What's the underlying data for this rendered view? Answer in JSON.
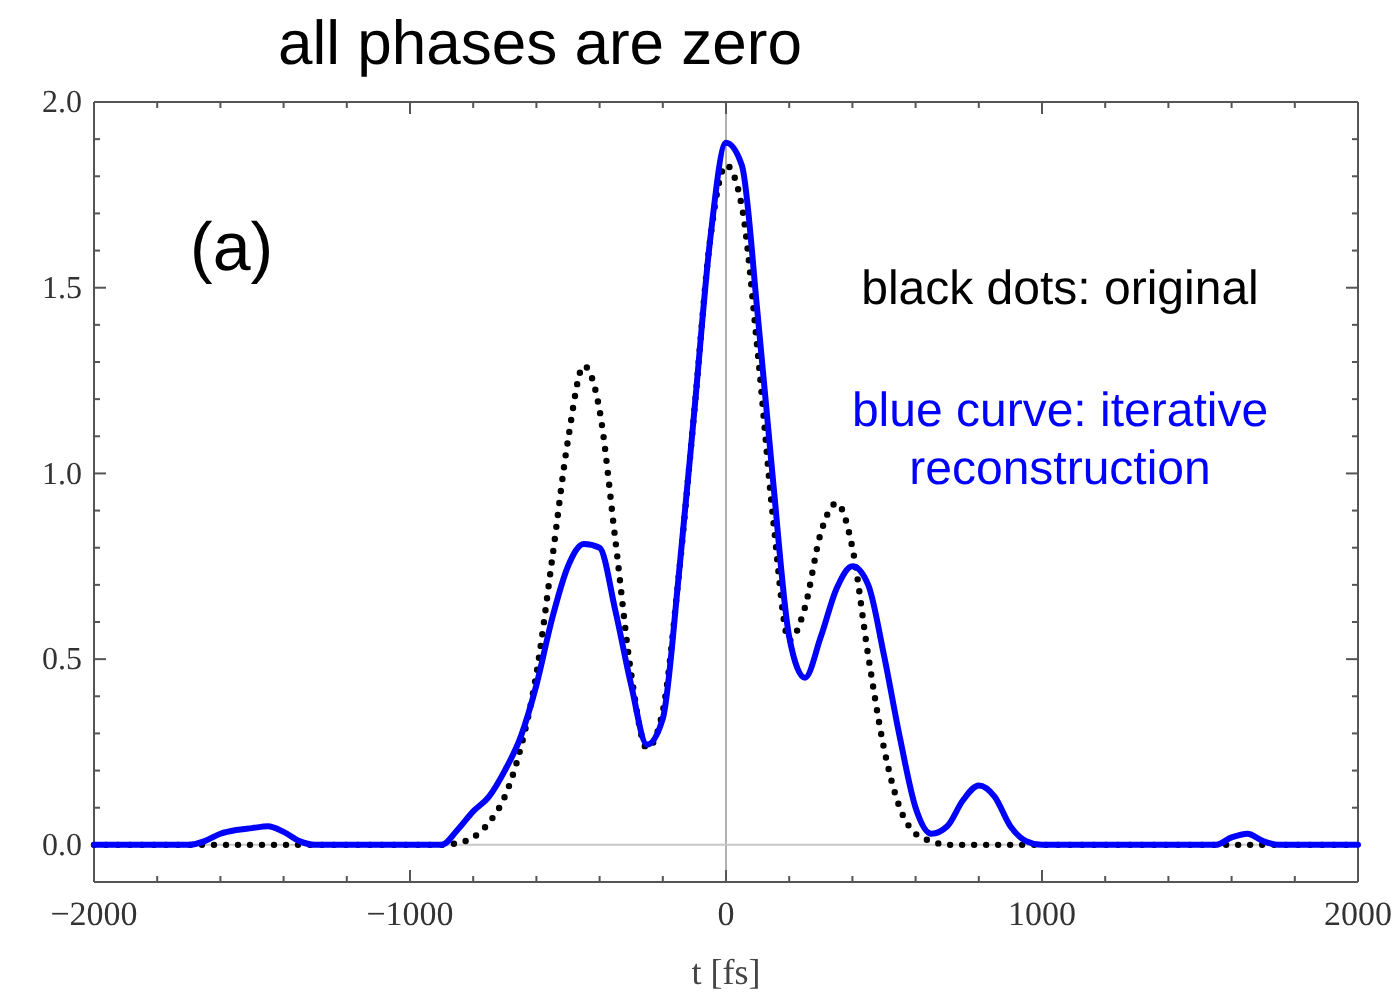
{
  "chart_data": {
    "type": "line",
    "title": "all phases are zero",
    "xlabel": "t [fs]",
    "annotations": [
      "(a)",
      "black dots: original",
      "blue curve: iterative reconstruction"
    ],
    "xlim": [
      -2000,
      2000
    ],
    "ylim": [
      -0.1,
      2.0
    ],
    "xticks": [
      -2000,
      {
        "value": -1800,
        "label": null
      },
      {
        "value": -1600,
        "label": null
      },
      {
        "value": -1400,
        "label": null
      },
      {
        "value": -1200,
        "label": null
      },
      -1000,
      {
        "value": -800,
        "label": null
      },
      {
        "value": -600,
        "label": null
      },
      {
        "value": -400,
        "label": null
      },
      {
        "value": -200,
        "label": null
      },
      0,
      {
        "value": 200,
        "label": null
      },
      {
        "value": 400,
        "label": null
      },
      {
        "value": 600,
        "label": null
      },
      {
        "value": 800,
        "label": null
      },
      1000,
      {
        "value": 1200,
        "label": null
      },
      {
        "value": 1400,
        "label": null
      },
      {
        "value": 1600,
        "label": null
      },
      {
        "value": 1800,
        "label": null
      },
      2000
    ],
    "yticks": [
      {
        "value": 0,
        "label": "0.0"
      },
      {
        "value": 0.1,
        "label": null
      },
      {
        "value": 0.2,
        "label": null
      },
      {
        "value": 0.3,
        "label": null
      },
      {
        "value": 0.4,
        "label": null
      },
      {
        "value": 0.5,
        "label": "0.5"
      },
      {
        "value": 0.6,
        "label": null
      },
      {
        "value": 0.7,
        "label": null
      },
      {
        "value": 0.8,
        "label": null
      },
      {
        "value": 0.9,
        "label": null
      },
      {
        "value": 1,
        "label": "1.0"
      },
      {
        "value": 1.1,
        "label": null
      },
      {
        "value": 1.2,
        "label": null
      },
      {
        "value": 1.3,
        "label": null
      },
      {
        "value": 1.4,
        "label": null
      },
      {
        "value": 1.5,
        "label": "1.5"
      },
      {
        "value": 1.6,
        "label": null
      },
      {
        "value": 1.7,
        "label": null
      },
      {
        "value": 1.8,
        "label": null
      },
      {
        "value": 1.9,
        "label": null
      },
      {
        "value": 2,
        "label": "2.0"
      }
    ],
    "ref_lines": [
      {
        "axis": "x",
        "value": 0,
        "color": "#b0b0b0"
      },
      {
        "axis": "y",
        "value": 0,
        "color": "#c8c8c8"
      }
    ],
    "series": [
      {
        "color": "#000000",
        "line_style": "dotted",
        "x": [
          -2000,
          -1000,
          -900,
          -850,
          -800,
          -750,
          -700,
          -650,
          -600,
          -550,
          -500,
          -450,
          -400,
          -350,
          -300,
          -250,
          -200,
          -150,
          -100,
          -50,
          0,
          50,
          100,
          150,
          200,
          250,
          300,
          350,
          400,
          450,
          500,
          550,
          600,
          650,
          700,
          2000
        ],
        "values": [
          0,
          0,
          0,
          0.005,
          0.02,
          0.06,
          0.13,
          0.26,
          0.46,
          0.77,
          1.09,
          1.29,
          1.17,
          0.82,
          0.46,
          0.26,
          0.36,
          0.72,
          1.17,
          1.63,
          1.83,
          1.72,
          1.33,
          0.87,
          0.55,
          0.64,
          0.84,
          0.92,
          0.8,
          0.51,
          0.26,
          0.1,
          0.03,
          0.01,
          0,
          0
        ]
      },
      {
        "color": "#0000ff",
        "line_style": "solid",
        "x": [
          -2000,
          -1700,
          -1650,
          -1600,
          -1550,
          -1500,
          -1450,
          -1400,
          -1350,
          -1300,
          -900,
          -850,
          -800,
          -750,
          -700,
          -650,
          -600,
          -550,
          -500,
          -450,
          -400,
          -350,
          -300,
          -250,
          -200,
          -150,
          -100,
          -50,
          0,
          50,
          100,
          150,
          200,
          250,
          300,
          350,
          400,
          450,
          500,
          550,
          600,
          650,
          700,
          750,
          800,
          850,
          900,
          950,
          1000,
          1550,
          1600,
          1650,
          1700,
          1750,
          2000
        ],
        "values": [
          0,
          0,
          0.01,
          0.03,
          0.04,
          0.045,
          0.05,
          0.035,
          0.01,
          0,
          0,
          0.04,
          0.09,
          0.13,
          0.2,
          0.29,
          0.43,
          0.61,
          0.75,
          0.81,
          0.8,
          0.63,
          0.43,
          0.27,
          0.34,
          0.72,
          1.17,
          1.63,
          1.89,
          1.83,
          1.43,
          0.97,
          0.56,
          0.45,
          0.56,
          0.69,
          0.75,
          0.7,
          0.51,
          0.29,
          0.1,
          0.03,
          0.05,
          0.12,
          0.16,
          0.13,
          0.05,
          0.01,
          0,
          0,
          0.02,
          0.03,
          0.01,
          0,
          0
        ]
      }
    ]
  }
}
